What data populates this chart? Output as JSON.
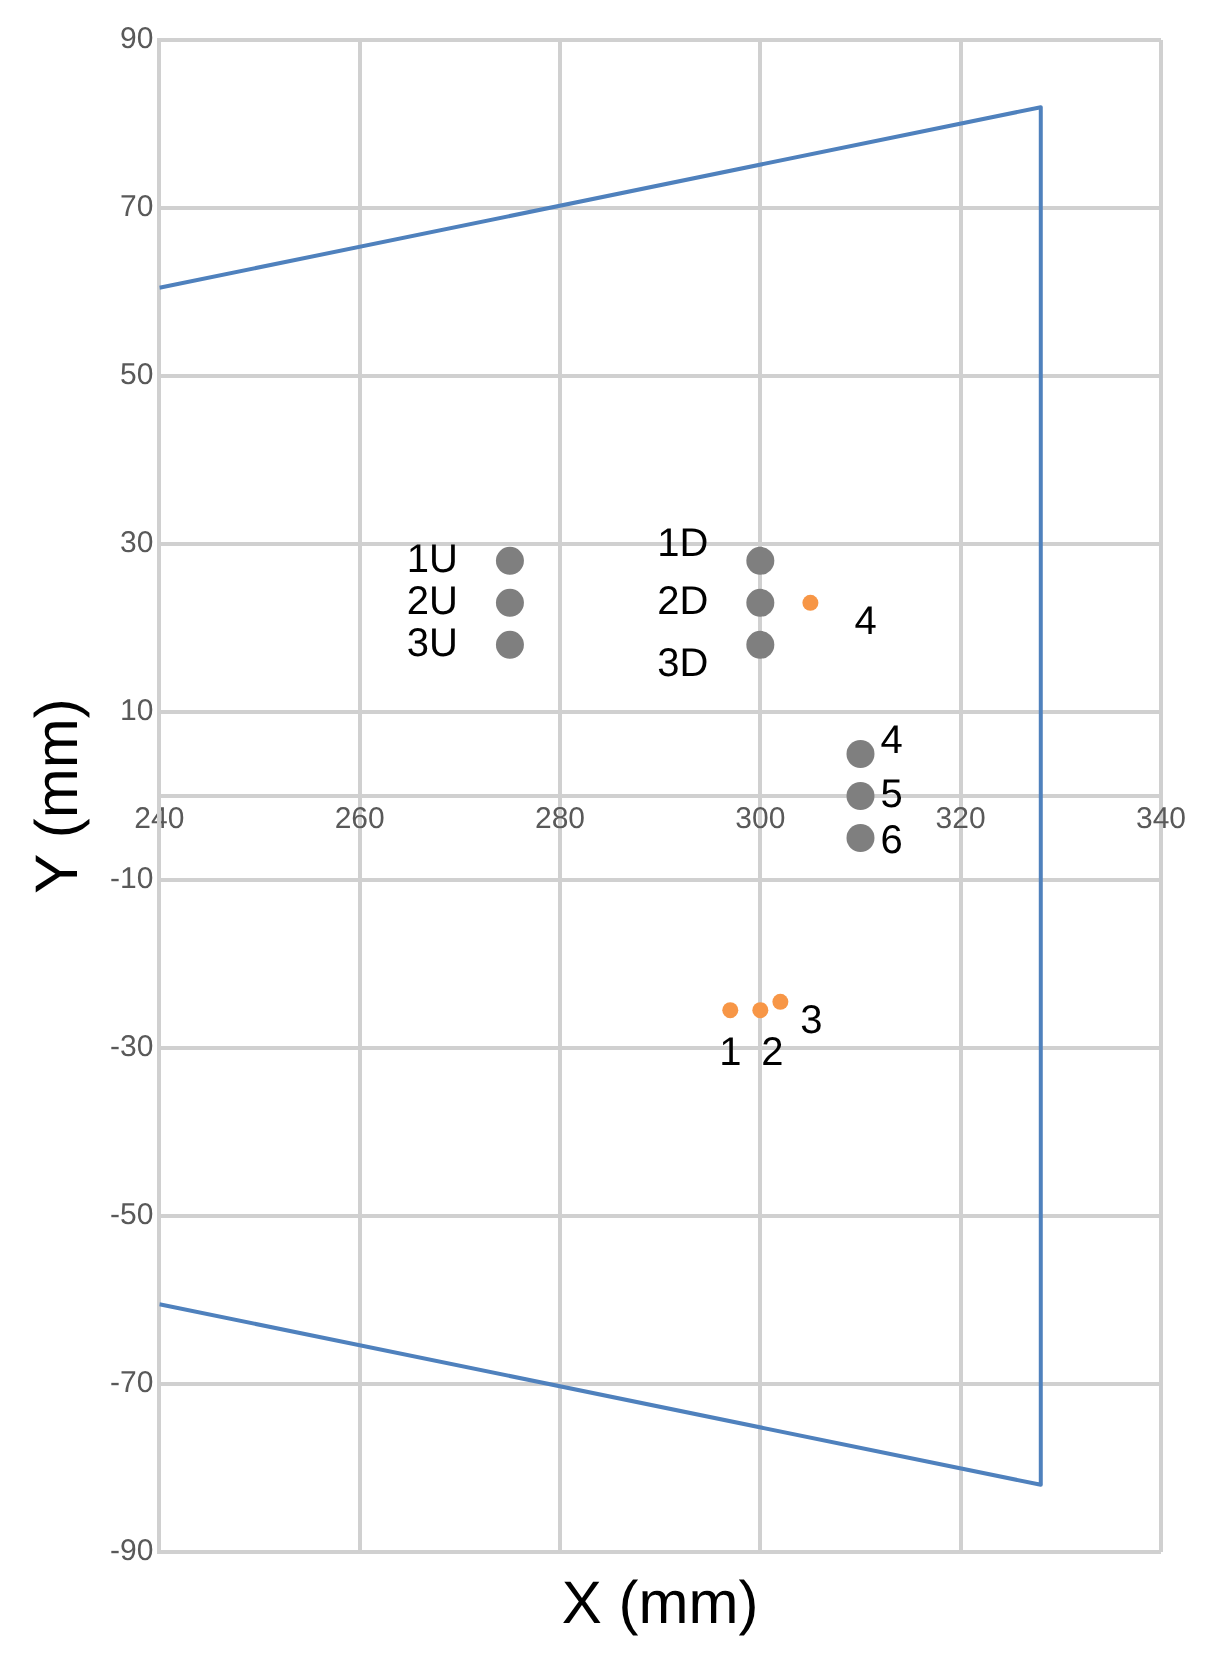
{
  "chart_data": {
    "type": "scatter",
    "xlabel": "X (mm)",
    "ylabel": "Y (mm)",
    "series": [
      {
        "type": "line",
        "color": "#4f81bd",
        "x": [
          240,
          328,
          328,
          240
        ],
        "values": [
          60.5,
          82,
          -82,
          -60.5
        ],
        "marker": "none"
      },
      {
        "color": "#7f7f7f",
        "x": [
          275,
          275,
          275,
          300,
          300,
          300,
          310,
          310,
          310
        ],
        "values": [
          28,
          23,
          18,
          28,
          23,
          18,
          5,
          0,
          -5
        ],
        "marker": "circle"
      },
      {
        "color": "#f79646",
        "x": [
          305,
          297,
          300,
          302
        ],
        "values": [
          23,
          -25.5,
          -25.5,
          -24.5
        ],
        "marker": "circle"
      }
    ],
    "annotations": [
      {
        "text": "1U",
        "x": 275,
        "y": 28
      },
      {
        "text": "2U",
        "x": 275,
        "y": 23
      },
      {
        "text": "3U",
        "x": 275,
        "y": 18
      },
      {
        "text": "1D",
        "x": 300,
        "y": 28
      },
      {
        "text": "2D",
        "x": 300,
        "y": 23
      },
      {
        "text": "3D",
        "x": 300,
        "y": 18
      },
      {
        "text": "4",
        "x": 305,
        "y": 23
      },
      {
        "text": "4",
        "x": 310,
        "y": 5
      },
      {
        "text": "5",
        "x": 310,
        "y": 0
      },
      {
        "text": "6",
        "x": 310,
        "y": -5
      },
      {
        "text": "1",
        "x": 297,
        "y": -25.5
      },
      {
        "text": "2",
        "x": 300,
        "y": -25.5
      },
      {
        "text": "3",
        "x": 302,
        "y": -24.5
      }
    ],
    "xlim": [
      240,
      340
    ],
    "xticks": [
      240,
      260,
      280,
      300,
      320,
      340
    ],
    "ylim": [
      -90,
      90
    ],
    "yticks": [
      -90,
      -70,
      -50,
      -30,
      -10,
      10,
      30,
      50,
      70,
      90
    ],
    "grid": true,
    "legend": false
  }
}
